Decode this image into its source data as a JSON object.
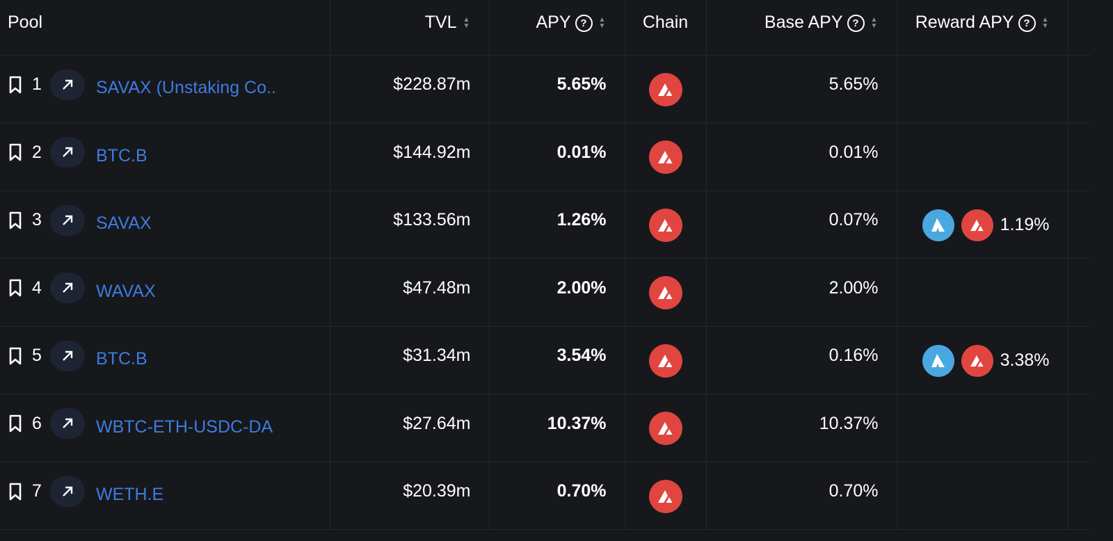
{
  "header": {
    "pool": "Pool",
    "tvl": "TVL",
    "apy": "APY",
    "chain": "Chain",
    "base_apy": "Base APY",
    "reward_apy": "Reward APY",
    "help": "?"
  },
  "rows": [
    {
      "index": "1",
      "name": "SAVAX (Unstaking Co..",
      "tvl": "$228.87m",
      "apy": "5.65%",
      "base_apy": "5.65%",
      "reward_apy": ""
    },
    {
      "index": "2",
      "name": "BTC.B",
      "tvl": "$144.92m",
      "apy": "0.01%",
      "base_apy": "0.01%",
      "reward_apy": ""
    },
    {
      "index": "3",
      "name": "SAVAX",
      "tvl": "$133.56m",
      "apy": "1.26%",
      "base_apy": "0.07%",
      "reward_apy": "1.19%"
    },
    {
      "index": "4",
      "name": "WAVAX",
      "tvl": "$47.48m",
      "apy": "2.00%",
      "base_apy": "2.00%",
      "reward_apy": ""
    },
    {
      "index": "5",
      "name": "BTC.B",
      "tvl": "$31.34m",
      "apy": "3.54%",
      "base_apy": "0.16%",
      "reward_apy": "3.38%"
    },
    {
      "index": "6",
      "name": "WBTC-ETH-USDC-DA",
      "tvl": "$27.64m",
      "apy": "10.37%",
      "base_apy": "10.37%",
      "reward_apy": ""
    },
    {
      "index": "7",
      "name": "WETH.E",
      "tvl": "$20.39m",
      "apy": "0.70%",
      "base_apy": "0.70%",
      "reward_apy": ""
    }
  ],
  "colors": {
    "link": "#3d7ce0",
    "avax": "#e0463f",
    "benqi": "#4aa8e0"
  }
}
